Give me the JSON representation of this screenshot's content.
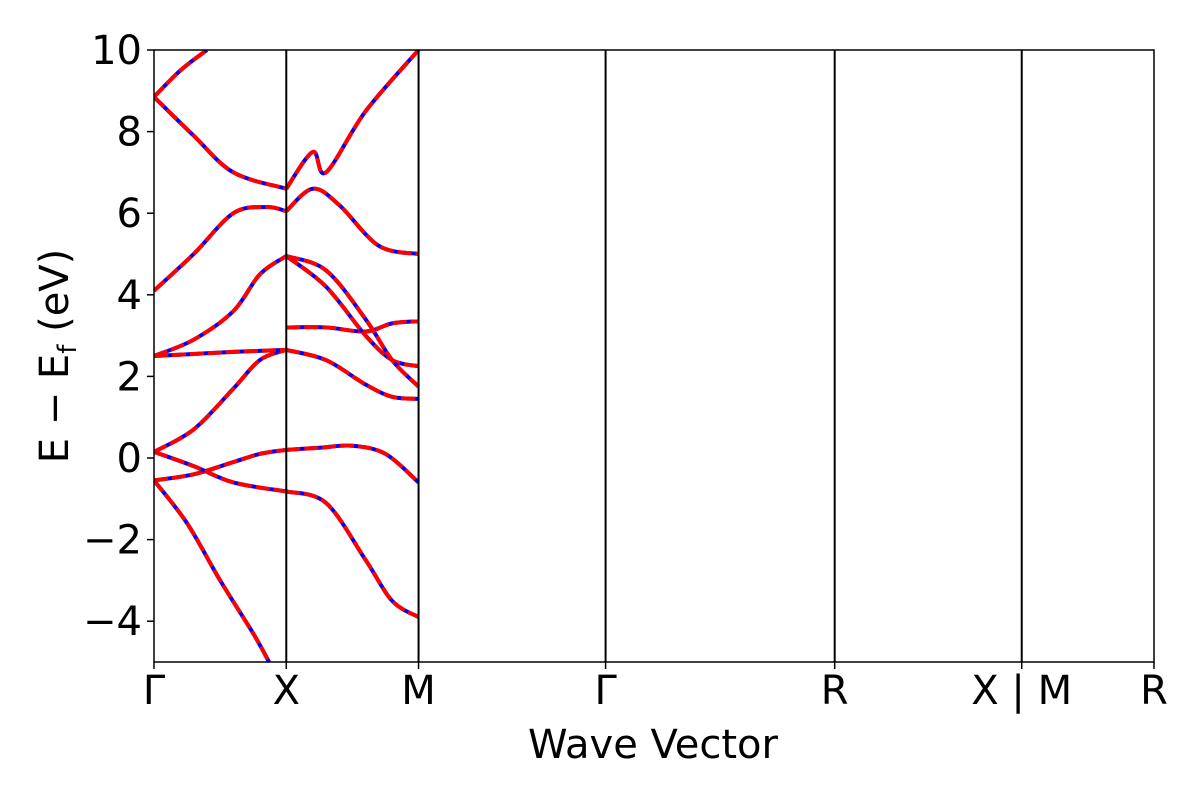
{
  "chart_data": {
    "type": "line",
    "title": "",
    "xlabel": "Wave Vector",
    "ylabel_parts": {
      "main": "E − E",
      "sub": "f",
      "unit": "(eV)"
    },
    "ylim": [
      -5,
      10
    ],
    "yticks": [
      -4,
      -2,
      0,
      2,
      4,
      6,
      8,
      10
    ],
    "ytick_labels": [
      "−4",
      "−2",
      "0",
      "2",
      "4",
      "6",
      "8",
      "10"
    ],
    "xlim": [
      0,
      7.6
    ],
    "kpoints": [
      {
        "label": "Γ",
        "x": 0.0
      },
      {
        "label": "X",
        "x": 1.0
      },
      {
        "label": "M",
        "x": 2.0
      },
      {
        "label": "Γ",
        "x": 3.414
      },
      {
        "label": "R",
        "x": 5.146
      },
      {
        "label": "X | M",
        "x": 6.56
      },
      {
        "label": "R",
        "x": 7.56
      }
    ],
    "grid": false,
    "series_style": {
      "solid_color": "#0000ff",
      "dashed_color": "#ff0000",
      "note_style": "blue solid overlaid by red dashed"
    },
    "bands": [
      {
        "segment": "Γ-X",
        "points": [
          [
            0,
            -0.55
          ],
          [
            0.25,
            -1.6
          ],
          [
            0.5,
            -3.0
          ],
          [
            0.75,
            -4.3
          ],
          [
            0.87,
            -5.0
          ]
        ]
      },
      {
        "segment": "Γ-X",
        "points": [
          [
            0,
            -0.55
          ],
          [
            0.3,
            -0.4
          ],
          [
            0.6,
            -0.1
          ],
          [
            0.8,
            0.1
          ],
          [
            1.0,
            0.2
          ]
        ]
      },
      {
        "segment": "Γ-X",
        "points": [
          [
            0,
            0.15
          ],
          [
            0.3,
            -0.2
          ],
          [
            0.6,
            -0.6
          ],
          [
            1.0,
            -0.82
          ]
        ]
      },
      {
        "segment": "Γ-X",
        "points": [
          [
            0,
            0.15
          ],
          [
            0.3,
            0.7
          ],
          [
            0.6,
            1.7
          ],
          [
            0.8,
            2.4
          ],
          [
            1.0,
            2.65
          ]
        ]
      },
      {
        "segment": "Γ-X",
        "points": [
          [
            0,
            2.5
          ],
          [
            0.3,
            2.55
          ],
          [
            0.6,
            2.6
          ],
          [
            1.0,
            2.65
          ]
        ]
      },
      {
        "segment": "Γ-X",
        "points": [
          [
            0,
            2.5
          ],
          [
            0.3,
            2.9
          ],
          [
            0.6,
            3.6
          ],
          [
            0.8,
            4.5
          ],
          [
            1.0,
            4.95
          ]
        ]
      },
      {
        "segment": "Γ-X",
        "points": [
          [
            0,
            4.1
          ],
          [
            0.3,
            5.0
          ],
          [
            0.6,
            6.0
          ],
          [
            0.85,
            6.15
          ],
          [
            1.0,
            6.05
          ]
        ]
      },
      {
        "segment": "Γ-X",
        "points": [
          [
            0,
            8.85
          ],
          [
            0.3,
            7.9
          ],
          [
            0.6,
            7.0
          ],
          [
            1.0,
            6.6
          ]
        ]
      },
      {
        "segment": "Γ-X",
        "points": [
          [
            0,
            8.85
          ],
          [
            0.2,
            9.5
          ],
          [
            0.4,
            10.0
          ]
        ]
      },
      {
        "segment": "X-M",
        "points": [
          [
            1.0,
            0.2
          ],
          [
            1.25,
            0.25
          ],
          [
            1.5,
            0.3
          ],
          [
            1.75,
            0.1
          ],
          [
            2.0,
            -0.6
          ]
        ]
      },
      {
        "segment": "X-M",
        "points": [
          [
            1.0,
            -0.82
          ],
          [
            1.3,
            -1.1
          ],
          [
            1.6,
            -2.5
          ],
          [
            1.8,
            -3.5
          ],
          [
            2.0,
            -3.9
          ]
        ]
      },
      {
        "segment": "X-M",
        "points": [
          [
            1.0,
            2.65
          ],
          [
            1.3,
            2.4
          ],
          [
            1.6,
            1.8
          ],
          [
            1.8,
            1.5
          ],
          [
            2.0,
            1.45
          ]
        ]
      },
      {
        "segment": "X-M",
        "points": [
          [
            1.0,
            3.2
          ],
          [
            1.3,
            3.2
          ],
          [
            1.6,
            3.1
          ],
          [
            1.8,
            3.3
          ],
          [
            2.0,
            3.35
          ]
        ]
      },
      {
        "segment": "X-M",
        "points": [
          [
            1.0,
            4.95
          ],
          [
            1.3,
            4.2
          ],
          [
            1.6,
            3.0
          ],
          [
            1.8,
            2.4
          ],
          [
            2.0,
            2.25
          ]
        ]
      },
      {
        "segment": "X-M",
        "points": [
          [
            1.0,
            4.95
          ],
          [
            1.3,
            4.6
          ],
          [
            1.6,
            3.4
          ],
          [
            1.8,
            2.4
          ],
          [
            2.0,
            1.75
          ]
        ]
      },
      {
        "segment": "X-M",
        "points": [
          [
            1.0,
            6.05
          ],
          [
            1.2,
            6.6
          ],
          [
            1.4,
            6.2
          ],
          [
            1.7,
            5.2
          ],
          [
            2.0,
            5.0
          ]
        ]
      },
      {
        "segment": "X-M",
        "points": [
          [
            1.0,
            6.6
          ],
          [
            1.2,
            7.5
          ],
          [
            1.3,
            7.0
          ],
          [
            1.6,
            8.5
          ],
          [
            2.0,
            10.0
          ]
        ]
      }
    ]
  }
}
